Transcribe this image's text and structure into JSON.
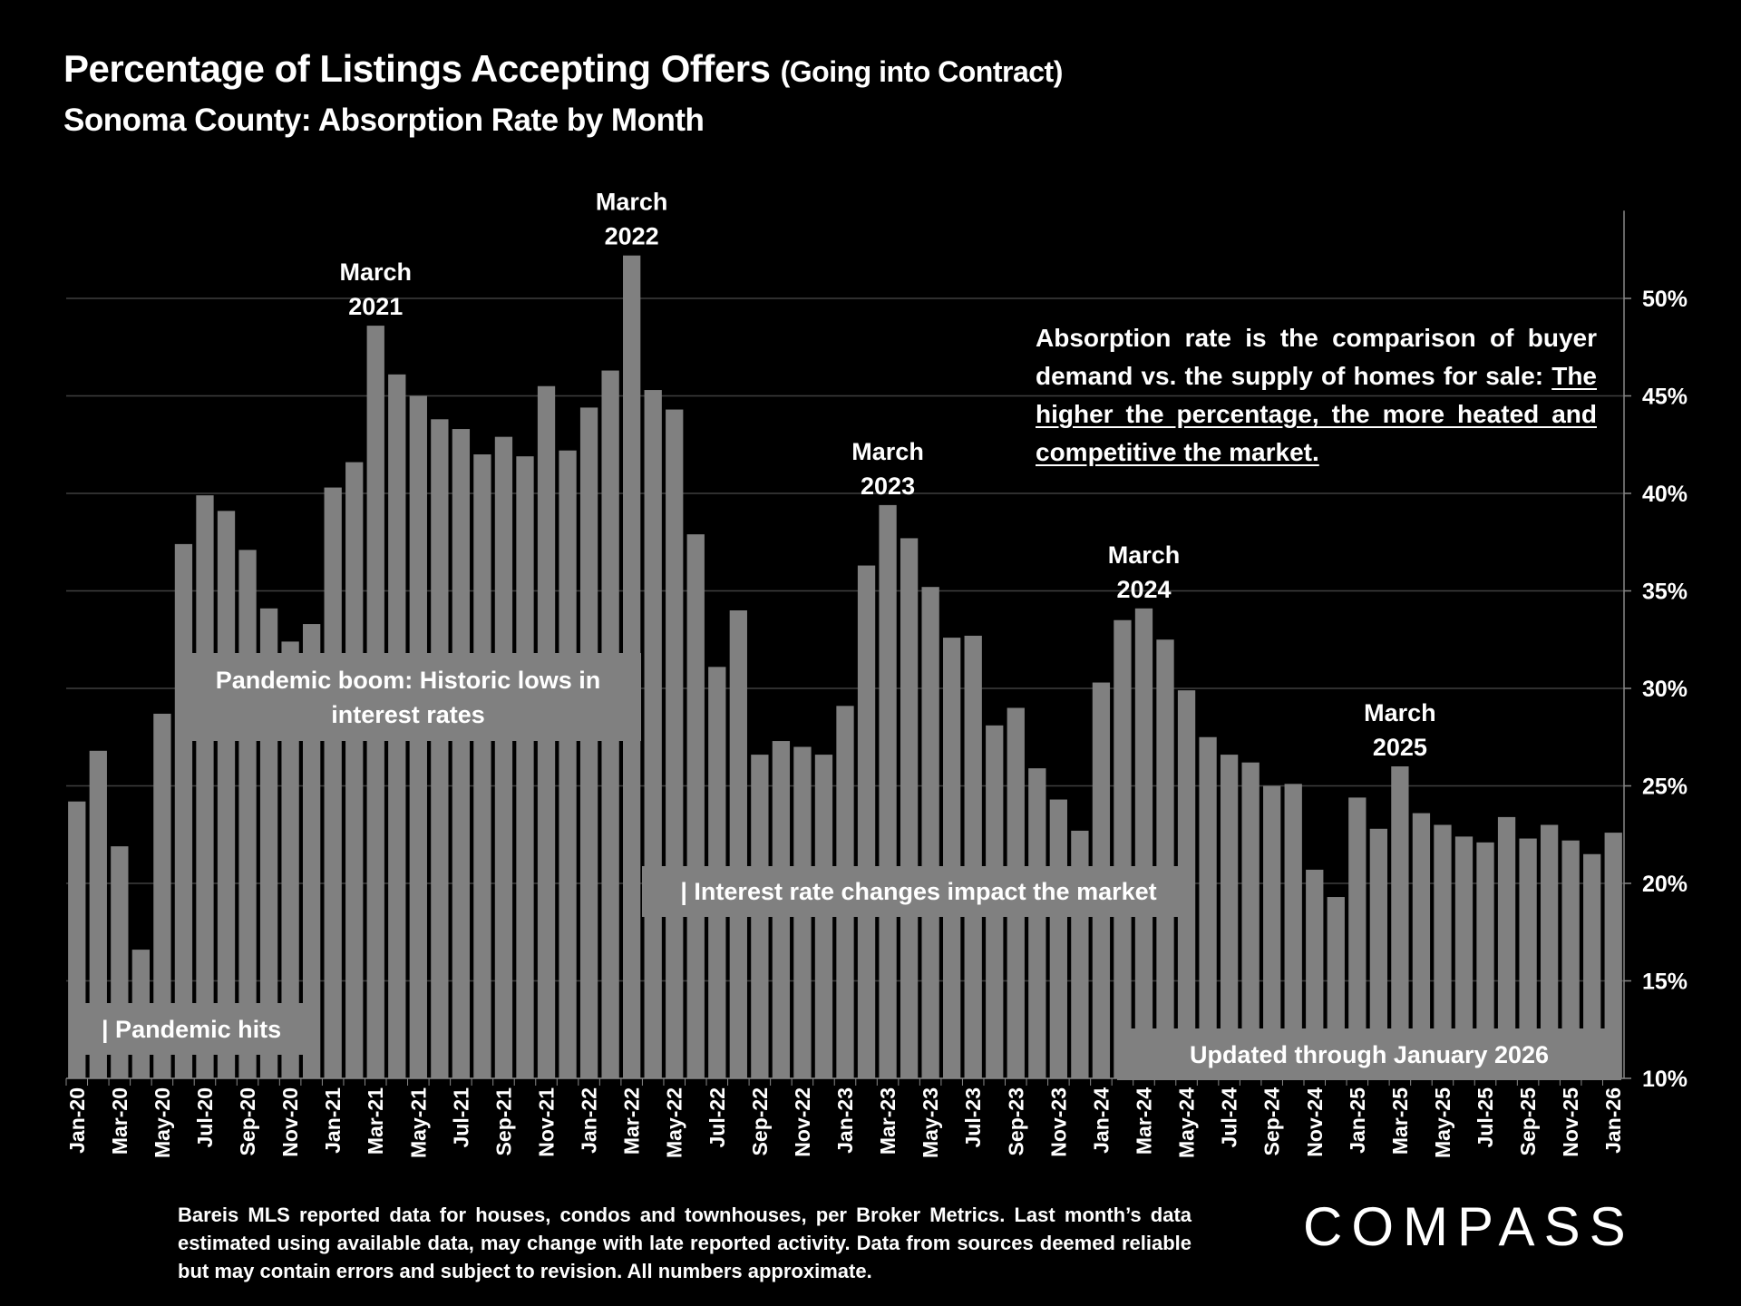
{
  "title": {
    "main": "Percentage of Listings Accepting Offers",
    "suffix": "(Going into Contract)"
  },
  "subtitle": "Sonoma County:  Absorption Rate by Month",
  "note": {
    "plain": "Absorption rate is the comparison of buyer demand vs. the supply of homes for sale: ",
    "underlined": "The higher the percentage, the more heated and competitive the market."
  },
  "annotations": {
    "pandemic_hits": "| Pandemic hits",
    "pandemic_boom": "Pandemic boom: Historic lows in interest rates",
    "interest_rates": "| Interest rate changes impact the market",
    "updated": "Updated through January 2026"
  },
  "footnote": "Bareis MLS reported data for houses, condos and townhouses, per Broker Metrics. Last month’s data estimated using available data, may change with late reported activity. Data from sources deemed reliable but may contain errors and subject to revision. All numbers approximate.",
  "logo": "COMPASS",
  "colors": {
    "background": "#000000",
    "bar": "#808080",
    "grid": "#3f3f3f",
    "text": "#ffffff"
  },
  "chart_data": {
    "type": "bar",
    "title": "Percentage of Listings Accepting Offers (Going into Contract)",
    "subtitle": "Sonoma County:  Absorption Rate by Month",
    "xlabel": "",
    "ylabel": "",
    "ylim": [
      10,
      54.5
    ],
    "y_axis_position": "right",
    "yticks": [
      10,
      15,
      20,
      25,
      30,
      35,
      40,
      45,
      50
    ],
    "ytick_labels": [
      "10%",
      "15%",
      "20%",
      "25%",
      "30%",
      "35%",
      "40%",
      "45%",
      "50%"
    ],
    "grid": true,
    "categories": [
      "Jan-20",
      "Feb-20",
      "Mar-20",
      "Apr-20",
      "May-20",
      "Jun-20",
      "Jul-20",
      "Aug-20",
      "Sep-20",
      "Oct-20",
      "Nov-20",
      "Dec-20",
      "Jan-21",
      "Feb-21",
      "Mar-21",
      "Apr-21",
      "May-21",
      "Jun-21",
      "Jul-21",
      "Aug-21",
      "Sep-21",
      "Oct-21",
      "Nov-21",
      "Dec-21",
      "Jan-22",
      "Feb-22",
      "Mar-22",
      "Apr-22",
      "May-22",
      "Jun-22",
      "Jul-22",
      "Aug-22",
      "Sep-22",
      "Oct-22",
      "Nov-22",
      "Dec-22",
      "Jan-23",
      "Feb-23",
      "Mar-23",
      "Apr-23",
      "May-23",
      "Jun-23",
      "Jul-23",
      "Aug-23",
      "Sep-23",
      "Oct-23",
      "Nov-23",
      "Dec-23",
      "Jan-24",
      "Feb-24",
      "Mar-24",
      "Apr-24",
      "May-24",
      "Jun-24",
      "Jul-24",
      "Aug-24",
      "Sep-24",
      "Oct-24",
      "Nov-24",
      "Dec-24",
      "Jan-25",
      "Feb-25",
      "Mar-25",
      "Apr-25",
      "May-25",
      "Jun-25",
      "Jul-25",
      "Aug-25",
      "Sep-25",
      "Oct-25",
      "Nov-25",
      "Dec-25",
      "Jan-26"
    ],
    "xtick_labels_shown_every": 2,
    "values": [
      24.2,
      26.8,
      21.9,
      16.6,
      28.7,
      37.4,
      39.9,
      39.1,
      37.1,
      34.1,
      32.4,
      33.3,
      40.3,
      41.6,
      48.6,
      46.1,
      45.0,
      43.8,
      43.3,
      42.0,
      42.9,
      41.9,
      45.5,
      42.2,
      44.4,
      46.3,
      52.2,
      45.3,
      44.3,
      37.9,
      31.1,
      34.0,
      26.6,
      27.3,
      27.0,
      26.6,
      29.1,
      36.3,
      39.4,
      37.7,
      35.2,
      32.6,
      32.7,
      28.1,
      29.0,
      25.9,
      24.3,
      22.7,
      30.3,
      33.5,
      34.1,
      32.5,
      29.9,
      27.5,
      26.6,
      26.2,
      25.0,
      25.1,
      20.7,
      19.3,
      24.4,
      22.8,
      26.0,
      23.6,
      23.0,
      22.4,
      22.1,
      23.4,
      22.3,
      23.0,
      22.2,
      21.5,
      22.6
    ],
    "peak_labels": [
      {
        "index": 14,
        "line1": "March",
        "line2": "2021"
      },
      {
        "index": 26,
        "line1": "March",
        "line2": "2022"
      },
      {
        "index": 38,
        "line1": "March",
        "line2": "2023"
      },
      {
        "index": 50,
        "line1": "March",
        "line2": "2024"
      },
      {
        "index": 62,
        "line1": "March",
        "line2": "2025"
      }
    ]
  }
}
